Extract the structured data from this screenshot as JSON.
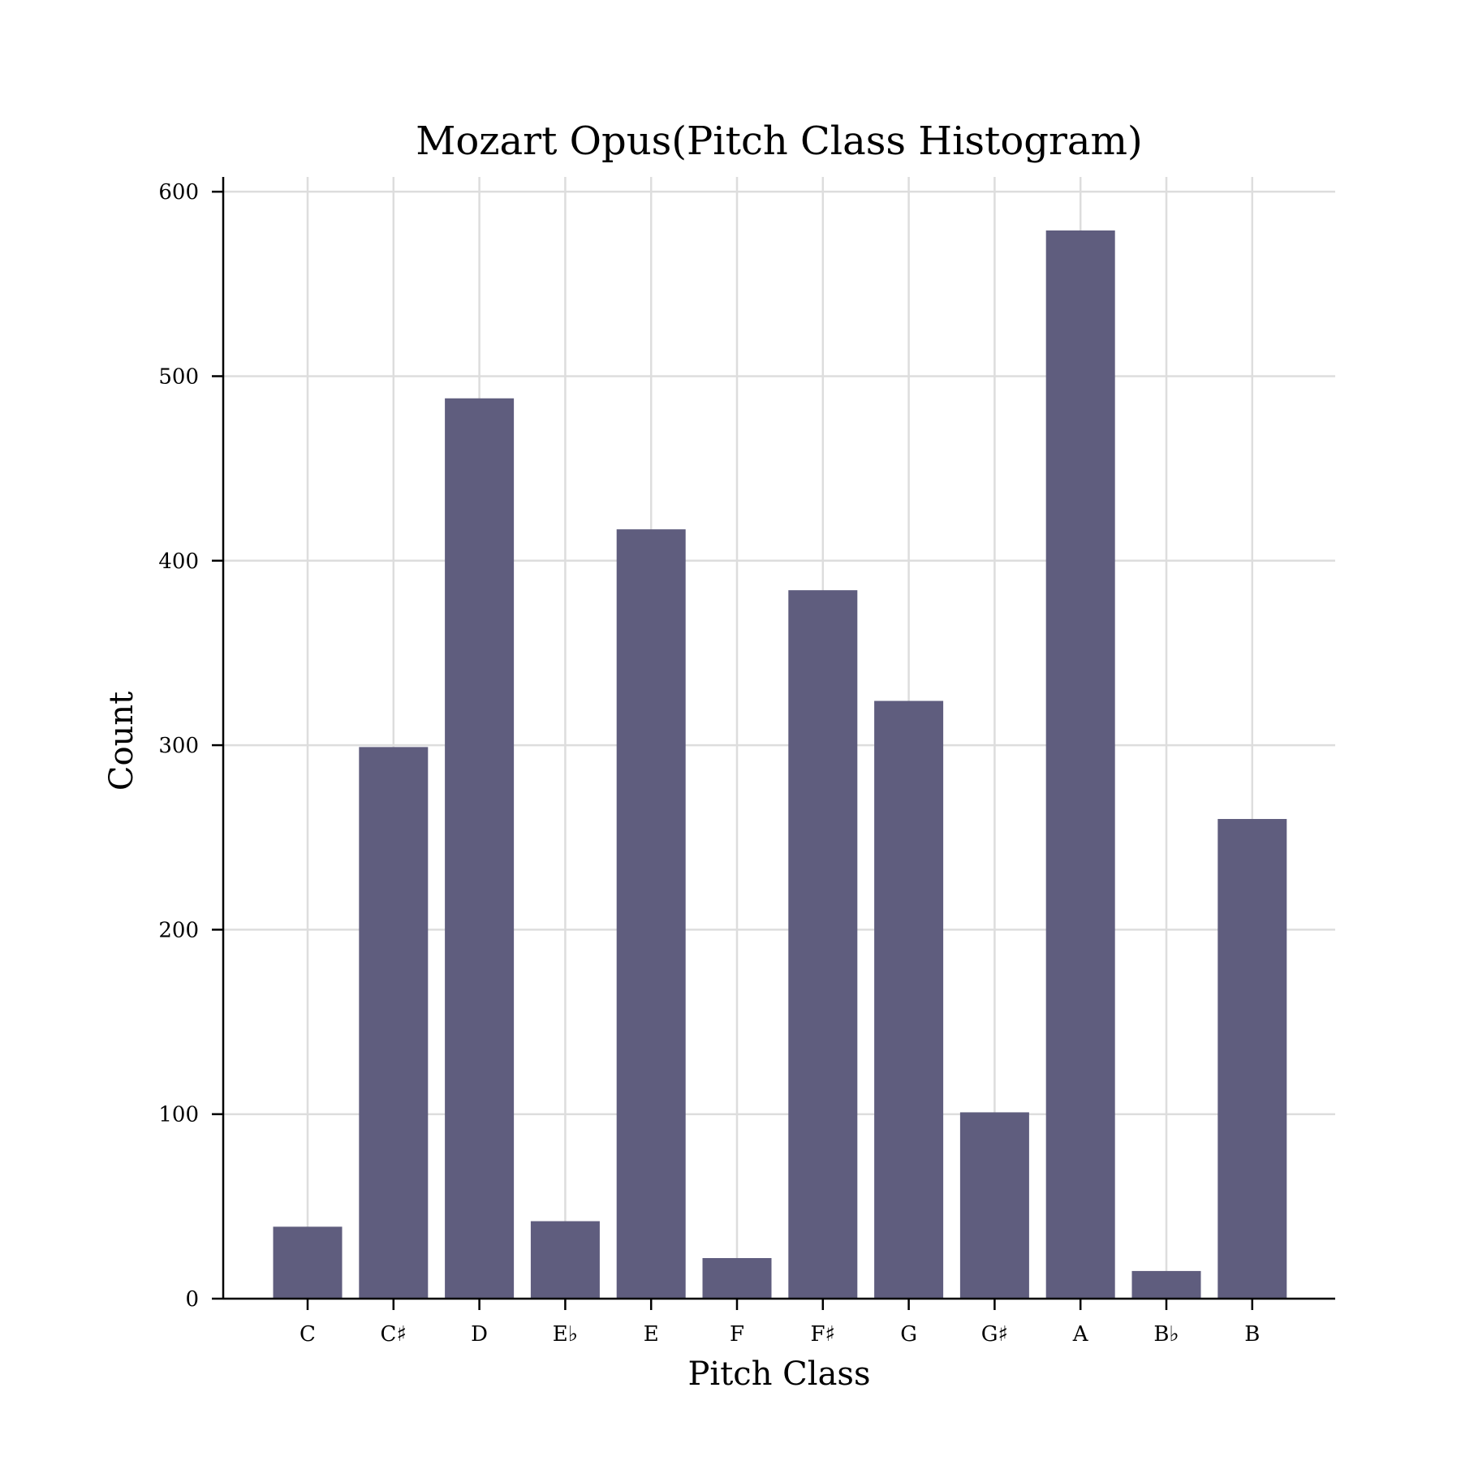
{
  "chart_data": {
    "type": "bar",
    "title": "Mozart Opus(Pitch Class Histogram)",
    "xlabel": "Pitch Class",
    "ylabel": "Count",
    "categories": [
      "C",
      "C♯",
      "D",
      "E♭",
      "E",
      "F",
      "F♯",
      "G",
      "G♯",
      "A",
      "B♭",
      "B"
    ],
    "values": [
      39,
      299,
      488,
      42,
      417,
      22,
      384,
      324,
      101,
      579,
      15,
      260
    ],
    "ylim": [
      0,
      608
    ],
    "yticks": [
      0,
      100,
      200,
      300,
      400,
      500,
      600
    ],
    "grid": true,
    "bar_color": "#5f5d7e"
  }
}
